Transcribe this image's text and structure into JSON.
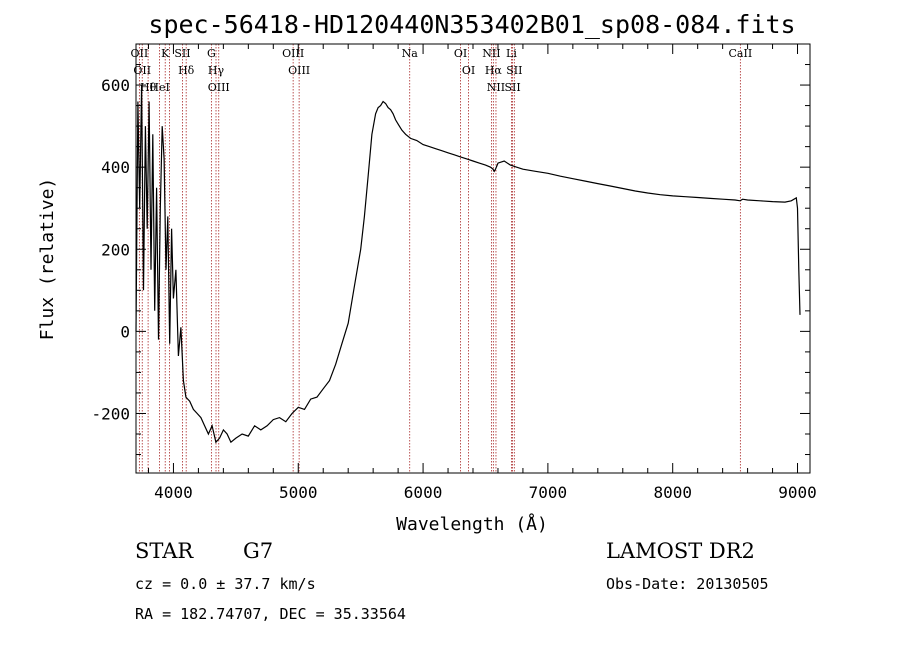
{
  "chart_data": {
    "type": "line",
    "title": "spec-56418-HD120440N353402B01_sp08-084.fits",
    "xlabel": "Wavelength (Å)",
    "ylabel": "Flux (relative)",
    "xlim": [
      3700,
      9100
    ],
    "ylim": [
      -345,
      700
    ],
    "xticks": [
      4000,
      5000,
      6000,
      7000,
      8000,
      9000
    ],
    "yticks": [
      -200,
      0,
      200,
      400,
      600
    ],
    "grid": false,
    "series": [
      {
        "values_x": [
          3700,
          3715,
          3730,
          3745,
          3760,
          3775,
          3790,
          3805,
          3820,
          3835,
          3850,
          3865,
          3880,
          3895,
          3910,
          3925,
          3940,
          3955,
          3970,
          3985,
          4000,
          4020,
          4040,
          4060,
          4080,
          4100,
          4130,
          4160,
          4190,
          4220,
          4250,
          4280,
          4310,
          4340,
          4370,
          4400,
          4430,
          4460,
          4500,
          4550,
          4600,
          4650,
          4700,
          4750,
          4800,
          4850,
          4900,
          4950,
          5000,
          5050,
          5100,
          5150,
          5200,
          5250,
          5300,
          5350,
          5400,
          5450,
          5500,
          5530,
          5560,
          5590,
          5620,
          5640,
          5660,
          5680,
          5700,
          5720,
          5740,
          5760,
          5780,
          5800,
          5830,
          5860,
          5900,
          5950,
          6000,
          6050,
          6100,
          6150,
          6200,
          6250,
          6300,
          6350,
          6400,
          6450,
          6500,
          6540,
          6560,
          6570,
          6580,
          6600,
          6650,
          6700,
          6750,
          6800,
          6900,
          7000,
          7100,
          7200,
          7300,
          7400,
          7500,
          7600,
          7700,
          7800,
          7900,
          8000,
          8100,
          8200,
          8300,
          8400,
          8500,
          8540,
          8560,
          8600,
          8700,
          8800,
          8900,
          8950,
          8990,
          9000,
          9010,
          9020
        ],
        "values_y": [
          0,
          560,
          300,
          600,
          100,
          500,
          250,
          560,
          150,
          480,
          50,
          350,
          -20,
          300,
          500,
          420,
          150,
          280,
          -30,
          250,
          80,
          150,
          -60,
          10,
          -120,
          -160,
          -170,
          -190,
          -200,
          -210,
          -230,
          -250,
          -230,
          -270,
          -260,
          -240,
          -250,
          -270,
          -260,
          -250,
          -255,
          -230,
          -240,
          -230,
          -215,
          -210,
          -220,
          -200,
          -185,
          -190,
          -165,
          -160,
          -140,
          -120,
          -80,
          -30,
          20,
          110,
          200,
          280,
          380,
          480,
          530,
          545,
          550,
          560,
          555,
          545,
          540,
          530,
          515,
          505,
          490,
          480,
          470,
          465,
          455,
          450,
          445,
          440,
          435,
          430,
          425,
          420,
          415,
          410,
          405,
          400,
          395,
          390,
          395,
          410,
          415,
          405,
          400,
          395,
          390,
          385,
          378,
          372,
          366,
          360,
          354,
          348,
          342,
          337,
          333,
          330,
          328,
          326,
          324,
          322,
          320,
          318,
          322,
          320,
          318,
          316,
          315,
          318,
          325,
          300,
          150,
          40
        ],
        "color": "#000000"
      }
    ],
    "lines": [
      {
        "x": 3727,
        "labels": [
          "OII"
        ]
      },
      {
        "x": 3750,
        "labels": [
          "OII"
        ]
      },
      {
        "x": 3797,
        "labels": [
          "Hθ"
        ]
      },
      {
        "x": 3889,
        "labels": [
          "HeI"
        ]
      },
      {
        "x": 3934,
        "labels": [
          "K"
        ]
      },
      {
        "x": 3968,
        "labels": []
      },
      {
        "x": 4072,
        "labels": [
          "SII"
        ]
      },
      {
        "x": 4102,
        "labels": [
          "Hδ"
        ]
      },
      {
        "x": 4304,
        "labels": [
          "G"
        ]
      },
      {
        "x": 4341,
        "labels": [
          "Hγ"
        ]
      },
      {
        "x": 4363,
        "labels": [
          "OIII"
        ]
      },
      {
        "x": 4959,
        "labels": [
          "OIII"
        ]
      },
      {
        "x": 5007,
        "labels": [
          "OIII"
        ]
      },
      {
        "x": 5893,
        "labels": [
          "Na"
        ]
      },
      {
        "x": 6300,
        "labels": [
          "OI"
        ]
      },
      {
        "x": 6364,
        "labels": [
          "OI"
        ]
      },
      {
        "x": 6548,
        "labels": [
          "NII"
        ]
      },
      {
        "x": 6563,
        "labels": [
          "Hα"
        ]
      },
      {
        "x": 6584,
        "labels": [
          "NII"
        ]
      },
      {
        "x": 6708,
        "labels": [
          "Li"
        ]
      },
      {
        "x": 6717,
        "labels": [
          "SII"
        ]
      },
      {
        "x": 6731,
        "labels": [
          "SII"
        ]
      },
      {
        "x": 8542,
        "labels": [
          "CaII"
        ]
      }
    ]
  },
  "info": {
    "class_label": "STAR",
    "subclass": "G7",
    "survey": "LAMOST DR2",
    "cz": "cz = 0.0 ± 37.7 km/s",
    "obs_date": "Obs-Date: 20130505",
    "radec": "RA = 182.74707, DEC =  35.33564"
  }
}
